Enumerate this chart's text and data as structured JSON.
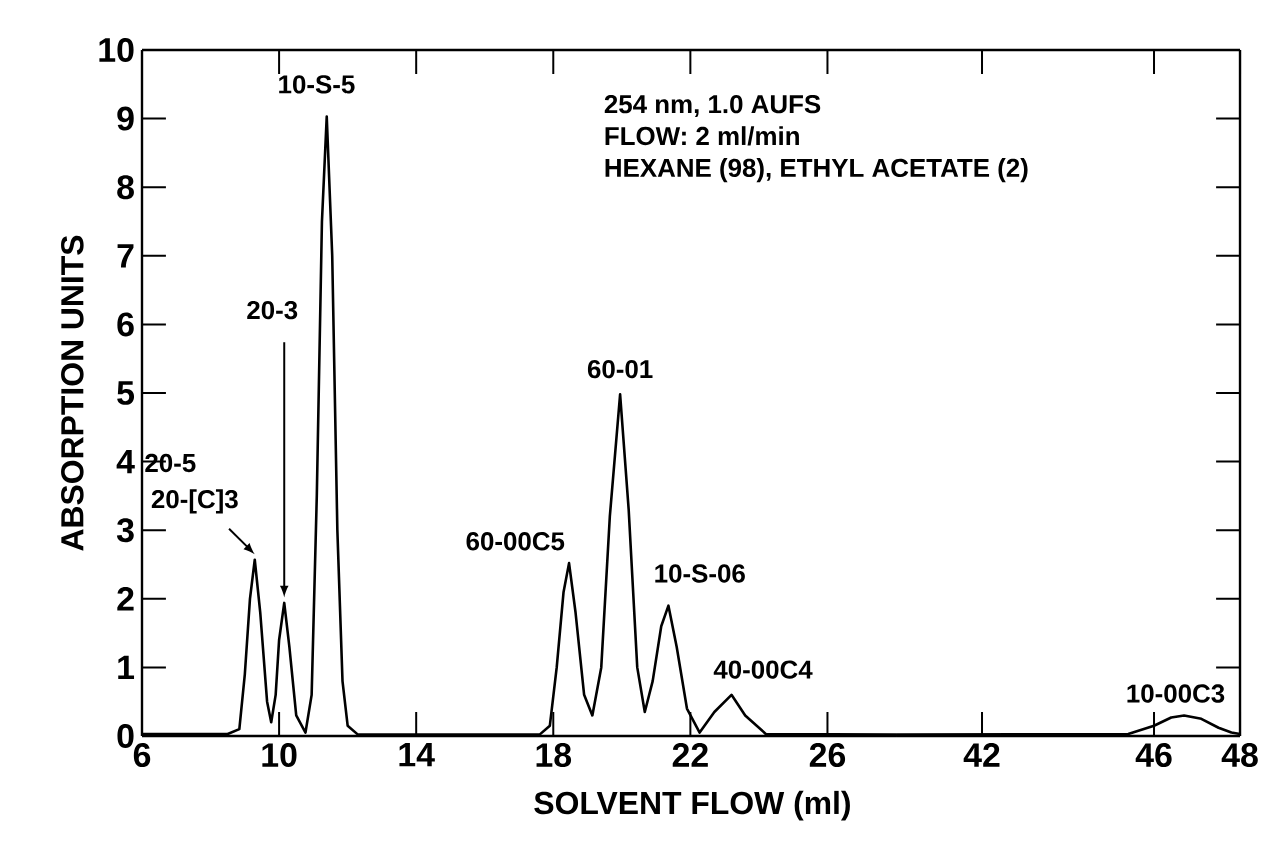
{
  "chart_data": [
    {
      "type": "line",
      "xlabel": "SOLVENT FLOW (ml)",
      "ylabel": "ABSORPTION UNITS",
      "color": "#000000",
      "x": [
        6,
        8.5,
        8.84,
        9.0,
        9.15,
        9.29,
        9.45,
        9.65,
        9.77,
        9.9,
        10.0,
        10.15,
        10.3,
        10.5,
        10.77,
        10.95,
        11.1,
        11.25,
        11.39,
        11.55,
        11.7,
        11.85,
        12.0,
        12.3,
        17.6,
        17.9,
        18.1,
        18.3,
        18.46,
        18.65,
        18.9,
        19.14,
        19.4,
        19.65,
        19.95,
        20.2,
        20.45,
        20.67,
        20.9,
        21.15,
        21.36,
        21.6,
        21.9,
        22.27,
        22.7,
        23.2,
        23.6,
        24.2,
        28
      ],
      "values": [
        0.03,
        0.03,
        0.1,
        0.9,
        2.0,
        2.57,
        1.8,
        0.5,
        0.2,
        0.6,
        1.4,
        1.94,
        1.3,
        0.3,
        0.05,
        0.6,
        3.5,
        7.5,
        9.03,
        7.0,
        3.0,
        0.8,
        0.15,
        0.02,
        0.02,
        0.15,
        1.0,
        2.1,
        2.52,
        1.8,
        0.6,
        0.3,
        1.0,
        3.2,
        4.98,
        3.3,
        1.0,
        0.35,
        0.8,
        1.6,
        1.9,
        1.3,
        0.4,
        0.05,
        0.35,
        0.6,
        0.3,
        0.03,
        0.02
      ],
      "xlim": [
        6,
        28
      ],
      "xticks": [
        6,
        10,
        14,
        18,
        22,
        26
      ],
      "ylim": [
        0,
        10
      ],
      "yticks": [
        0,
        1,
        2,
        3,
        4,
        5,
        6,
        7,
        8,
        9,
        10
      ],
      "annotations": [
        {
          "text": "10-S-5",
          "x": 11.39,
          "y": 9.03
        },
        {
          "text": "20-3",
          "x": 10.15,
          "y": 1.94
        },
        "20-5",
        {
          "text": "20-[C]3",
          "x": 9.29,
          "y": 2.57
        },
        {
          "text": "60-00C5",
          "x": 18.46,
          "y": 2.52
        },
        {
          "text": "60-01",
          "x": 19.95,
          "y": 4.98
        },
        {
          "text": "10-S-06",
          "x": 21.36,
          "y": 1.9
        },
        {
          "text": "40-00C4",
          "x": 23.2,
          "y": 0.6
        },
        "254 nm, 1.0 AUFS",
        "FLOW: 2 ml/min",
        "HEXANE (98), ETHYL ACETATE (2)"
      ]
    },
    {
      "type": "line",
      "color": "#000000",
      "tick_labels": "x",
      "x": [
        40,
        45.4,
        46.0,
        46.4,
        46.7,
        47.1,
        47.5,
        47.8,
        48
      ],
      "values": [
        0.02,
        0.03,
        0.15,
        0.27,
        0.3,
        0.25,
        0.12,
        0.05,
        0.03
      ],
      "xlim": [
        40,
        48
      ],
      "xticks": [
        42,
        46,
        48
      ],
      "ylim": [
        0,
        10
      ],
      "yticks": [
        0,
        1,
        2,
        3,
        4,
        5,
        6,
        7,
        8,
        9,
        10
      ],
      "annotations": [
        {
          "text": "10-00C3",
          "x": 46.7,
          "y": 0.3
        }
      ]
    }
  ]
}
